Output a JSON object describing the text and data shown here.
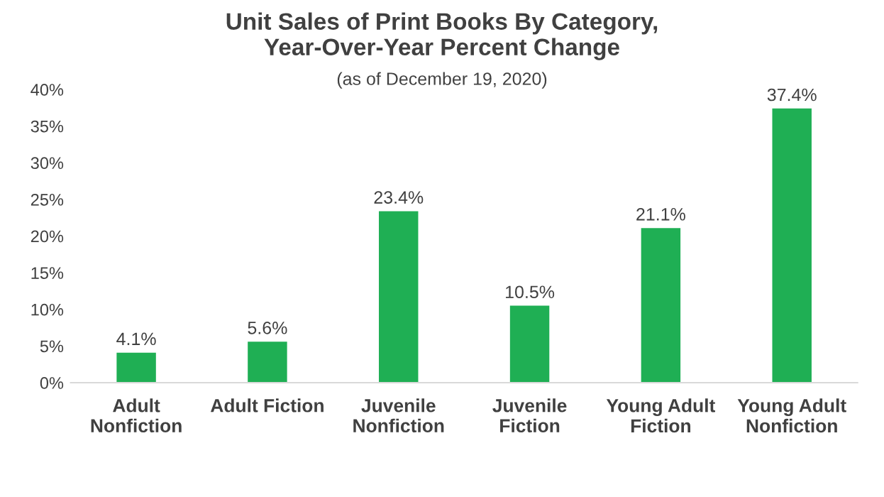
{
  "chart_data": {
    "type": "bar",
    "title": "Unit Sales of Print Books By Category,\nYear-Over-Year Percent Change",
    "subtitle": "(as of December 19, 2020)",
    "categories": [
      "Adult\nNonfiction",
      "Adult Fiction",
      "Juvenile\nNonfiction",
      "Juvenile\nFiction",
      "Young Adult\nFiction",
      "Young Adult\nNonfiction"
    ],
    "values": [
      4.1,
      5.6,
      23.4,
      10.5,
      21.1,
      37.4
    ],
    "value_labels": [
      "4.1%",
      "5.6%",
      "23.4%",
      "10.5%",
      "21.1%",
      "37.4%"
    ],
    "color": "#1faf54",
    "ylim": [
      0,
      40
    ],
    "yticks": [
      {
        "value": 0,
        "label": "0%"
      },
      {
        "value": 5,
        "label": "5%"
      },
      {
        "value": 10,
        "label": "10%"
      },
      {
        "value": 15,
        "label": "15%"
      },
      {
        "value": 20,
        "label": "20%"
      },
      {
        "value": 25,
        "label": "25%"
      },
      {
        "value": 30,
        "label": "30%"
      },
      {
        "value": 35,
        "label": "35%"
      },
      {
        "value": 40,
        "label": "40%"
      }
    ],
    "grid": false,
    "legend": false
  }
}
